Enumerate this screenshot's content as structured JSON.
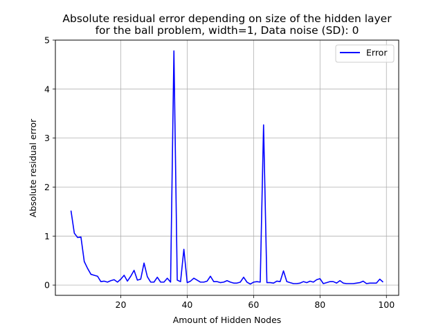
{
  "chart_data": {
    "type": "line",
    "title": "Absolute residual error depending on size of the hidden layer",
    "subtitle": "for the ball problem, width=1, Data noise (SD): 0",
    "xlabel": "Amount of Hidden Nodes",
    "ylabel": "Absolute residual error",
    "xlim": [
      0.3,
      103.7
    ],
    "ylim": [
      -0.21,
      5.0
    ],
    "xticks": [
      20,
      40,
      60,
      80,
      100
    ],
    "xtick_labels": [
      "20",
      "40",
      "60",
      "80",
      "100"
    ],
    "yticks": [
      0,
      1,
      2,
      3,
      4,
      5
    ],
    "ytick_labels": [
      "0",
      "1",
      "2",
      "3",
      "4",
      "5"
    ],
    "grid": true,
    "legend_position": "top-right",
    "series": [
      {
        "name": "Error",
        "color": "#0000ff",
        "x": [
          5,
          6,
          7,
          8,
          9,
          10,
          11,
          12,
          13,
          14,
          15,
          16,
          17,
          18,
          19,
          20,
          21,
          22,
          23,
          24,
          25,
          26,
          27,
          28,
          29,
          30,
          31,
          32,
          33,
          34,
          35,
          36,
          37,
          38,
          39,
          40,
          41,
          42,
          43,
          44,
          45,
          46,
          47,
          48,
          49,
          50,
          51,
          52,
          53,
          54,
          55,
          56,
          57,
          58,
          59,
          60,
          61,
          62,
          63,
          64,
          65,
          66,
          67,
          68,
          69,
          70,
          71,
          72,
          73,
          74,
          75,
          76,
          77,
          78,
          79,
          80,
          81,
          82,
          83,
          84,
          85,
          86,
          87,
          88,
          89,
          90,
          91,
          92,
          93,
          94,
          95,
          96,
          97,
          98,
          99
        ],
        "values": [
          1.52,
          1.06,
          0.97,
          0.98,
          0.48,
          0.34,
          0.22,
          0.2,
          0.18,
          0.07,
          0.08,
          0.06,
          0.09,
          0.11,
          0.06,
          0.12,
          0.2,
          0.08,
          0.18,
          0.3,
          0.1,
          0.12,
          0.45,
          0.17,
          0.06,
          0.06,
          0.16,
          0.06,
          0.06,
          0.14,
          0.06,
          4.78,
          0.1,
          0.07,
          0.73,
          0.05,
          0.08,
          0.14,
          0.1,
          0.06,
          0.06,
          0.08,
          0.18,
          0.07,
          0.07,
          0.05,
          0.06,
          0.09,
          0.06,
          0.04,
          0.04,
          0.06,
          0.16,
          0.06,
          0.02,
          0.06,
          0.07,
          0.06,
          3.27,
          0.05,
          0.05,
          0.04,
          0.08,
          0.07,
          0.29,
          0.07,
          0.05,
          0.03,
          0.03,
          0.04,
          0.07,
          0.05,
          0.08,
          0.06,
          0.11,
          0.13,
          0.03,
          0.05,
          0.07,
          0.07,
          0.04,
          0.09,
          0.04,
          0.03,
          0.03,
          0.03,
          0.04,
          0.05,
          0.08,
          0.03,
          0.04,
          0.04,
          0.04,
          0.12,
          0.06
        ]
      }
    ]
  }
}
